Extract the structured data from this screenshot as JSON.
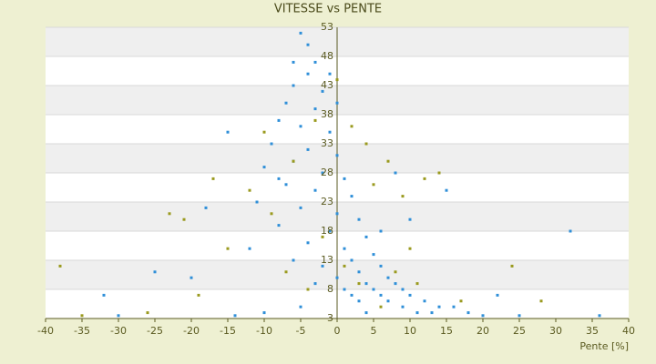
{
  "chart_data": {
    "type": "scatter",
    "title": "VITESSE vs PENTE",
    "x_label": "Pente [%]",
    "xlim": [
      -40,
      40
    ],
    "xticks": [
      -40,
      -35,
      -30,
      -25,
      -20,
      -15,
      -10,
      -5,
      0,
      5,
      10,
      15,
      20,
      25,
      30,
      35,
      40
    ],
    "ylim": [
      3,
      53
    ],
    "yticks": [
      3,
      8,
      13,
      18,
      23,
      28,
      33,
      38,
      43,
      48,
      53
    ],
    "grid": true,
    "series": [
      {
        "color": "#2f8fd8",
        "x": [
          -5,
          -4,
          -3,
          -4,
          -6,
          -2,
          -7,
          -3,
          -8,
          -5,
          -1,
          -9,
          -4,
          0,
          -6,
          -10,
          -2,
          1,
          -7,
          -3,
          2,
          -11,
          -5,
          0,
          3,
          -8,
          -1,
          4,
          -4,
          1,
          5,
          -6,
          2,
          6,
          -2,
          3,
          7,
          0,
          4,
          8,
          -3,
          5,
          9,
          1,
          6,
          10,
          2,
          12,
          7,
          3,
          14,
          9,
          -5,
          16,
          11,
          4,
          18,
          -10,
          20,
          13,
          -14,
          25,
          36,
          32,
          -15,
          -20,
          -32,
          -25,
          -12,
          -8,
          15,
          8,
          -1,
          0,
          -6,
          10,
          6,
          22,
          -18,
          -30
        ],
        "values": [
          52,
          50,
          47,
          45,
          43,
          42,
          40,
          39,
          37,
          36,
          35,
          33,
          32,
          31,
          30,
          29,
          28,
          27,
          26,
          25,
          24,
          23,
          22,
          21,
          20,
          19,
          18,
          17,
          16,
          15,
          14,
          13,
          13,
          12,
          12,
          11,
          10,
          10,
          9,
          9,
          9,
          8,
          8,
          8,
          7,
          7,
          7,
          6,
          6,
          6,
          5,
          5,
          5,
          5,
          4,
          4,
          4,
          4,
          3.5,
          4,
          3.5,
          3.5,
          3.5,
          18,
          35,
          10,
          7,
          11,
          15,
          27,
          25,
          28,
          45,
          40,
          47,
          20,
          18,
          7,
          22,
          3.5
        ]
      },
      {
        "color": "#9a9a1e",
        "x": [
          -38,
          -35,
          -26,
          -21,
          -17,
          -15,
          -12,
          -9,
          -6,
          -3,
          0,
          2,
          4,
          5,
          7,
          9,
          10,
          12,
          14,
          -2,
          1,
          3,
          6,
          8,
          -4,
          -7,
          17,
          24,
          28,
          -23,
          -19,
          -10,
          11
        ],
        "values": [
          12,
          3.5,
          4,
          20,
          27,
          15,
          25,
          21,
          30,
          37,
          44,
          36,
          33,
          26,
          30,
          24,
          15,
          27,
          28,
          17,
          12,
          9,
          5,
          11,
          8,
          11,
          6,
          12,
          6,
          21,
          7,
          35,
          9
        ]
      }
    ]
  }
}
